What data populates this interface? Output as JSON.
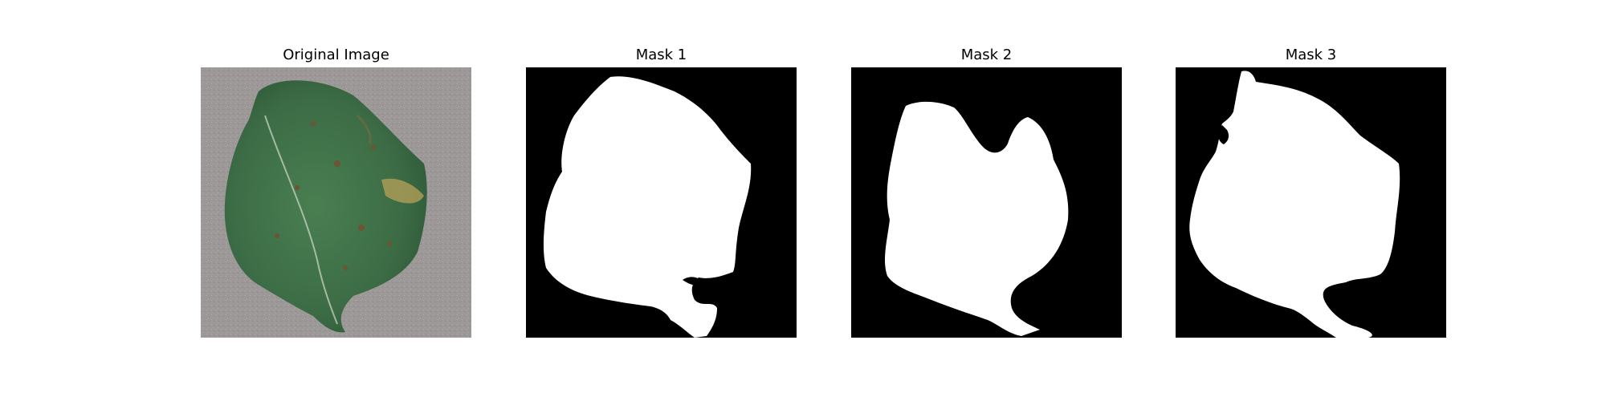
{
  "figure": {
    "panels": [
      {
        "title": "Original Image"
      },
      {
        "title": "Mask 1"
      },
      {
        "title": "Mask 2"
      },
      {
        "title": "Mask 3"
      }
    ]
  },
  "colors": {
    "background": "#ffffff",
    "mask_background": "#000000",
    "mask_foreground": "#ffffff",
    "leaf_green": "#3f7048",
    "ground_gray": "#9b9897"
  }
}
